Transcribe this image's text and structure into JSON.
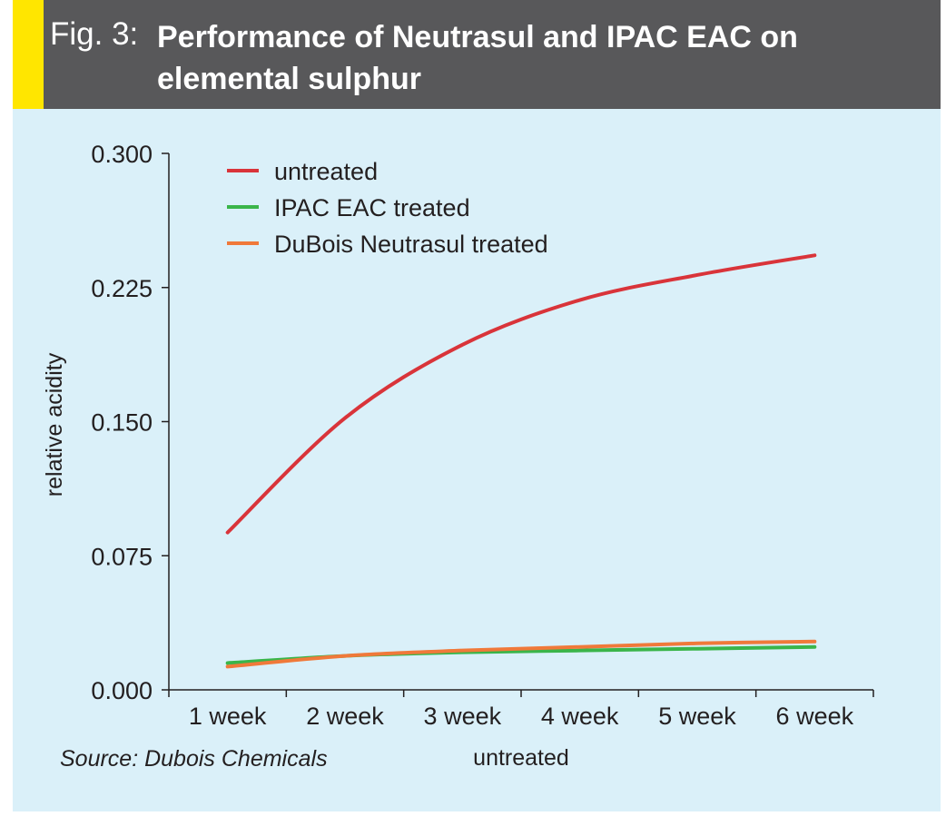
{
  "figure": {
    "label": "Fig. 3:",
    "title": "Performance of Neutrasul and IPAC EAC on elemental sulphur",
    "source": "Source: Dubois Chemicals"
  },
  "colors": {
    "header_bg": "#58585a",
    "header_accent": "#ffe600",
    "panel_bg": "#daf0f9"
  },
  "chart_data": {
    "type": "line",
    "categories": [
      "1 week",
      "2 week",
      "3 week",
      "4 week",
      "5 week",
      "6 week"
    ],
    "ylabel": "relative acidity",
    "xlabel": "untreated",
    "ylim": [
      0,
      0.3
    ],
    "yticks": [
      "0.000",
      "0.075",
      "0.150",
      "0.225",
      "0.300"
    ],
    "grid": false,
    "legend_position": "top-left",
    "series": [
      {
        "name": "untreated",
        "color": "#d9343a",
        "values": [
          0.088,
          0.152,
          0.193,
          0.218,
          0.232,
          0.243
        ]
      },
      {
        "name": "IPAC EAC treated",
        "color": "#3ab54a",
        "values": [
          0.015,
          0.019,
          0.021,
          0.022,
          0.023,
          0.024
        ]
      },
      {
        "name": "DuBois Neutrasul treated",
        "color": "#f0793a",
        "values": [
          0.013,
          0.019,
          0.022,
          0.024,
          0.026,
          0.027
        ]
      }
    ]
  }
}
